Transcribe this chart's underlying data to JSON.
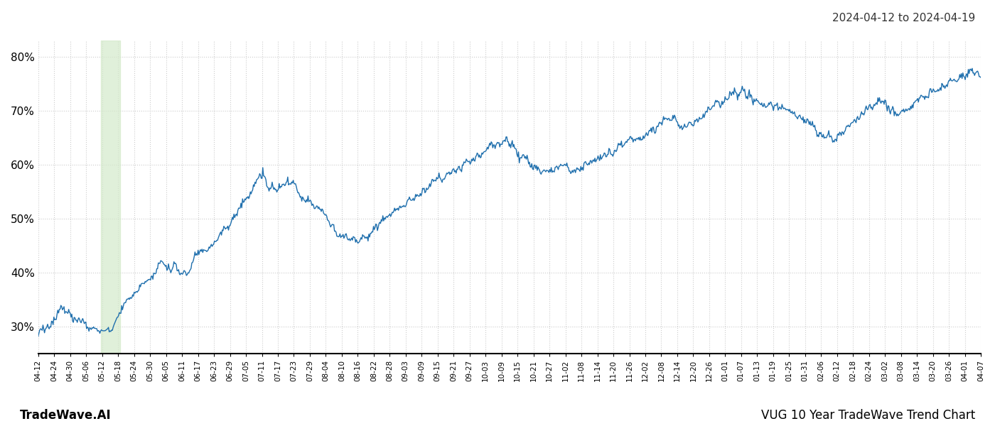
{
  "title_right": "2024-04-12 to 2024-04-19",
  "footer_left": "TradeWave.AI",
  "footer_right": "VUG 10 Year TradeWave Trend Chart",
  "line_color": "#1f6fad",
  "line_width": 1.0,
  "shade_color": "#d4eacb",
  "shade_alpha": 0.7,
  "bg_color": "#ffffff",
  "grid_color": "#cccccc",
  "ylim": [
    25,
    83
  ],
  "yticks": [
    30,
    40,
    50,
    60,
    70,
    80
  ],
  "xlabel_fontsize": 7.5,
  "ylabel_fontsize": 11,
  "title_fontsize": 11,
  "footer_fontsize": 12,
  "x_labels": [
    "04-12",
    "04-24",
    "04-30",
    "05-06",
    "05-12",
    "05-18",
    "05-24",
    "05-30",
    "06-05",
    "06-11",
    "06-17",
    "06-23",
    "06-29",
    "07-05",
    "07-11",
    "07-17",
    "07-23",
    "07-29",
    "08-04",
    "08-10",
    "08-16",
    "08-22",
    "08-28",
    "09-03",
    "09-09",
    "09-15",
    "09-21",
    "09-27",
    "10-03",
    "10-09",
    "10-15",
    "10-21",
    "10-27",
    "11-02",
    "11-08",
    "11-14",
    "11-20",
    "11-26",
    "12-02",
    "12-08",
    "12-14",
    "12-20",
    "12-26",
    "01-01",
    "01-07",
    "01-13",
    "01-19",
    "01-25",
    "01-31",
    "02-06",
    "02-12",
    "02-18",
    "02-24",
    "03-02",
    "03-08",
    "03-14",
    "03-20",
    "03-26",
    "04-01",
    "04-07"
  ]
}
